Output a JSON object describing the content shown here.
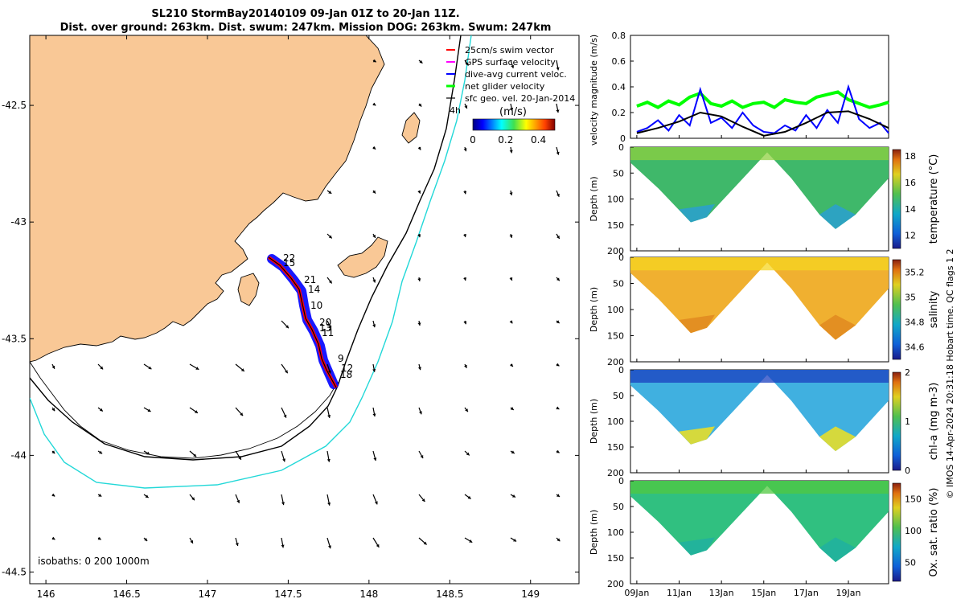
{
  "title": {
    "line1": "SL210 StormBay20140109 09-Jan 01Z to 20-Jan 11Z.",
    "line2": "Dist. over ground: 263km. Dist. swum: 247km. Mission DOG: 263km. Swum: 247km"
  },
  "chart_data": [
    {
      "type": "map",
      "x_ticks": [
        "146",
        "146.5",
        "147",
        "147.5",
        "148",
        "148.5",
        "149"
      ],
      "y_ticks": [
        "-42.5",
        "-43",
        "-43.5",
        "-44",
        "-44.5"
      ],
      "xlim": [
        145.9,
        149.3
      ],
      "ylim": [
        -44.55,
        -42.2
      ],
      "legend": [
        {
          "label": "25cm/s swim vector",
          "color": "#ff0000"
        },
        {
          "label": "GPS surface velocity",
          "color": "#ff00ff"
        },
        {
          "label": "dive-avg current veloc.",
          "color": "#0000ff"
        },
        {
          "label": "net glider velocity",
          "color": "#00ff00"
        },
        {
          "label": "sfc geo. vel. 20-Jan-2014",
          "color": "#000000"
        }
      ],
      "legend_extra": "4h",
      "colorbar": {
        "title": "(m/s)",
        "ticks": [
          "0",
          "0.2",
          "0.4"
        ],
        "range": [
          0,
          0.5
        ]
      },
      "isobaths_label": "isobaths: 0   200  1000m",
      "track_day_labels": [
        "22",
        "15",
        "21",
        "14",
        "10",
        "20",
        "13",
        "11",
        "9",
        "12",
        "18"
      ]
    },
    {
      "type": "line",
      "ylabel": "velocity magnitude (m/s)",
      "y_ticks": [
        "0",
        "0.2",
        "0.4",
        "0.6",
        "0.8"
      ],
      "ylim": [
        0,
        0.8
      ],
      "xlim_days": [
        8.7,
        20.9
      ],
      "series": [
        {
          "color": "#00ff00",
          "x": [
            9.0,
            9.5,
            10.0,
            10.5,
            11.0,
            11.5,
            12.0,
            12.5,
            13.0,
            13.5,
            14.0,
            14.5,
            15.0,
            15.5,
            16.0,
            16.5,
            17.0,
            17.5,
            18.0,
            18.5,
            19.0,
            19.5,
            20.0,
            20.5,
            20.9
          ],
          "y": [
            0.25,
            0.28,
            0.24,
            0.29,
            0.26,
            0.32,
            0.35,
            0.27,
            0.25,
            0.29,
            0.24,
            0.27,
            0.28,
            0.24,
            0.3,
            0.28,
            0.27,
            0.32,
            0.34,
            0.36,
            0.3,
            0.27,
            0.24,
            0.26,
            0.28
          ]
        },
        {
          "color": "#0000ff",
          "x": [
            9.0,
            9.5,
            10.0,
            10.5,
            11.0,
            11.5,
            12.0,
            12.5,
            13.0,
            13.5,
            14.0,
            14.5,
            15.0,
            15.5,
            16.0,
            16.5,
            17.0,
            17.5,
            18.0,
            18.5,
            19.0,
            19.5,
            20.0,
            20.5,
            20.9
          ],
          "y": [
            0.05,
            0.08,
            0.14,
            0.06,
            0.18,
            0.1,
            0.38,
            0.12,
            0.16,
            0.08,
            0.2,
            0.1,
            0.05,
            0.04,
            0.1,
            0.06,
            0.18,
            0.08,
            0.22,
            0.12,
            0.4,
            0.15,
            0.08,
            0.12,
            0.04
          ]
        },
        {
          "color": "#000000",
          "x": [
            9.0,
            10.0,
            11.0,
            12.0,
            13.0,
            14.0,
            15.0,
            16.0,
            17.0,
            18.0,
            19.0,
            20.0,
            20.9
          ],
          "y": [
            0.04,
            0.08,
            0.13,
            0.2,
            0.17,
            0.09,
            0.02,
            0.05,
            0.12,
            0.2,
            0.21,
            0.15,
            0.08
          ]
        }
      ]
    },
    {
      "type": "heatmap",
      "ylabel": "Depth (m)",
      "clabel": "temperature (°C)",
      "y_ticks": [
        "0",
        "50",
        "100",
        "150",
        "200"
      ],
      "c_ticks": [
        "12",
        "14",
        "16",
        "18"
      ],
      "crange": [
        11,
        18.5
      ]
    },
    {
      "type": "heatmap",
      "ylabel": "Depth (m)",
      "clabel": "salinity",
      "y_ticks": [
        "0",
        "50",
        "100",
        "150",
        "200"
      ],
      "c_ticks": [
        "34.6",
        "34.8",
        "35",
        "35.2"
      ],
      "crange": [
        34.5,
        35.3
      ]
    },
    {
      "type": "heatmap",
      "ylabel": "Depth (m)",
      "clabel": "chl-a (mg m-3)",
      "y_ticks": [
        "0",
        "50",
        "100",
        "150",
        "200"
      ],
      "c_ticks": [
        "0",
        "1",
        "2"
      ],
      "crange": [
        0,
        2
      ]
    },
    {
      "type": "heatmap",
      "ylabel": "Depth (m)",
      "clabel": "Ox. sat. ratio (%)",
      "y_ticks": [
        "0",
        "50",
        "100",
        "150",
        "200"
      ],
      "c_ticks": [
        "50",
        "100",
        "150"
      ],
      "crange": [
        20,
        175
      ],
      "x_ticks": [
        "09Jan",
        "11Jan",
        "13Jan",
        "15Jan",
        "17Jan",
        "19Jan"
      ]
    }
  ],
  "side_note": "© IMOS 14-Apr-2024 20:31:18 Hobart time. QC flags 1  2"
}
